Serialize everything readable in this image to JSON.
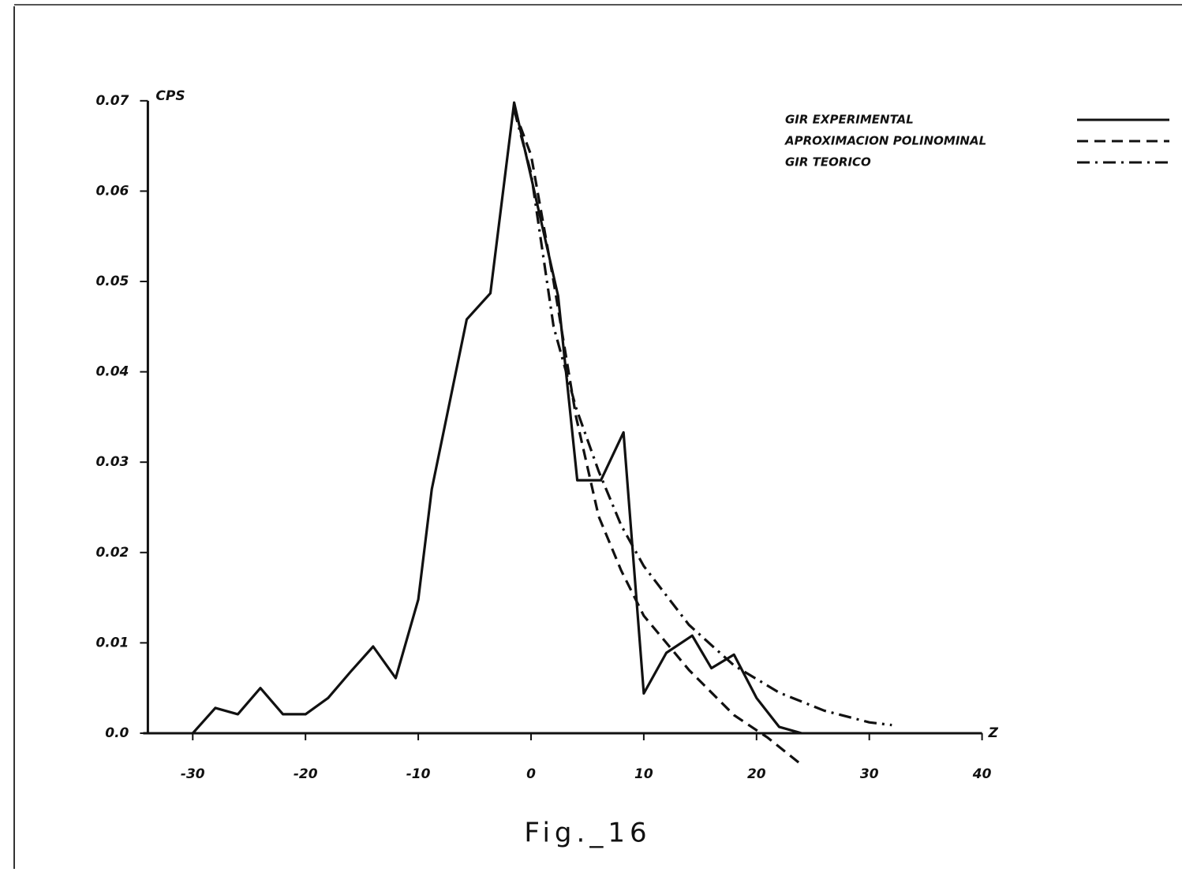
{
  "chart_data": {
    "type": "line",
    "caption": "Fig._16",
    "ylabel": "CPS",
    "xlabel": "Z",
    "xlim": [
      -34.4,
      40
    ],
    "ylim": [
      -0.004,
      0.072
    ],
    "xticks": [
      -30,
      -20,
      -10,
      0,
      10,
      20,
      30,
      40
    ],
    "yticks": [
      {
        "value": 0,
        "label": "0.0"
      },
      0.01,
      0.02,
      0.03,
      0.04,
      0.05,
      0.06,
      0.07
    ],
    "grid": false,
    "legend": "upper right",
    "series": [
      {
        "name": "GIR EXPERIMENTAL",
        "color": "#111111",
        "style": "solid",
        "x": [
          -30,
          -28,
          -26,
          -24,
          -22,
          -20,
          -18,
          -16,
          -14,
          -12,
          -10,
          -8.8,
          -5.7,
          -3.6,
          -1.5,
          2.4,
          4.1,
          6.2,
          8.2,
          10,
          12,
          14.3,
          16,
          18,
          20,
          22,
          24
        ],
        "values": [
          0,
          0.0028,
          0.0021,
          0.005,
          0.0021,
          0.0021,
          0.0039,
          0.0068,
          0.0096,
          0.0061,
          0.0148,
          0.027,
          0.0458,
          0.0487,
          0.0698,
          0.0484,
          0.028,
          0.028,
          0.0333,
          0.0044,
          0.0089,
          0.0108,
          0.0072,
          0.0087,
          0.0039,
          0.0007,
          0
        ]
      },
      {
        "name": "APROXIMACION POLINOMINAL",
        "color": "#111111",
        "style": "dashed",
        "x": [
          -1.5,
          0,
          2,
          4,
          6,
          8,
          10,
          14,
          18,
          21,
          24
        ],
        "values": [
          0.069,
          0.064,
          0.05,
          0.035,
          0.024,
          0.018,
          0.013,
          0.007,
          0.002,
          -0.0005,
          -0.0035
        ]
      },
      {
        "name": "GIR TEORICO",
        "color": "#111111",
        "style": "dashdot",
        "x": [
          -1.5,
          0,
          2,
          4,
          6,
          8,
          10,
          14,
          18,
          22,
          26,
          30,
          32
        ],
        "values": [
          0.069,
          0.062,
          0.045,
          0.036,
          0.029,
          0.023,
          0.0185,
          0.012,
          0.0075,
          0.0045,
          0.0025,
          0.0012,
          0.0009
        ]
      }
    ]
  }
}
